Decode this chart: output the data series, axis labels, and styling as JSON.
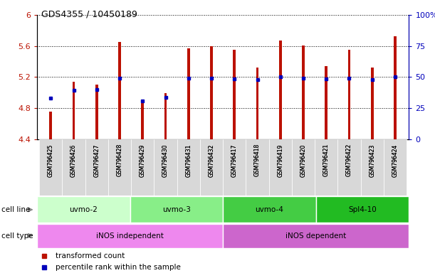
{
  "title": "GDS4355 / 10450189",
  "samples": [
    "GSM796425",
    "GSM796426",
    "GSM796427",
    "GSM796428",
    "GSM796429",
    "GSM796430",
    "GSM796431",
    "GSM796432",
    "GSM796417",
    "GSM796418",
    "GSM796419",
    "GSM796420",
    "GSM796421",
    "GSM796422",
    "GSM796423",
    "GSM796424"
  ],
  "transformed_count": [
    4.76,
    5.14,
    5.1,
    5.65,
    4.87,
    4.99,
    5.57,
    5.6,
    5.55,
    5.32,
    5.67,
    5.61,
    5.34,
    5.55,
    5.32,
    5.73
  ],
  "percentile_values": [
    4.93,
    5.03,
    5.04,
    5.19,
    4.89,
    4.94,
    5.19,
    5.19,
    5.18,
    5.17,
    5.2,
    5.19,
    5.18,
    5.19,
    5.17,
    5.2
  ],
  "ylim_left": [
    4.4,
    6.0
  ],
  "ylim_right": [
    0,
    100
  ],
  "yticks_left": [
    4.4,
    4.8,
    5.2,
    5.6,
    6.0
  ],
  "ytick_labels_left": [
    "4.4",
    "4.8",
    "5.2",
    "5.6",
    "6"
  ],
  "yticks_right": [
    0,
    25,
    50,
    75,
    100
  ],
  "ytick_labels_right": [
    "0",
    "25",
    "50",
    "75",
    "100%"
  ],
  "bar_color": "#bb1100",
  "percentile_color": "#0000bb",
  "bar_width": 0.12,
  "cell_lines": [
    {
      "label": "uvmo-2",
      "start": 0,
      "end": 3,
      "color": "#ccffcc"
    },
    {
      "label": "uvmo-3",
      "start": 4,
      "end": 7,
      "color": "#88ee88"
    },
    {
      "label": "uvmo-4",
      "start": 8,
      "end": 11,
      "color": "#44cc44"
    },
    {
      "label": "Spl4-10",
      "start": 12,
      "end": 15,
      "color": "#22bb22"
    }
  ],
  "cell_types": [
    {
      "label": "iNOS independent",
      "start": 0,
      "end": 7,
      "color": "#ee88ee"
    },
    {
      "label": "iNOS dependent",
      "start": 8,
      "end": 15,
      "color": "#cc66cc"
    }
  ],
  "legend_bar_label": "transformed count",
  "legend_percentile_label": "percentile rank within the sample",
  "cell_line_label": "cell line",
  "cell_type_label": "cell type",
  "bg_gray": "#d8d8d8",
  "arrow_color": "#888888"
}
